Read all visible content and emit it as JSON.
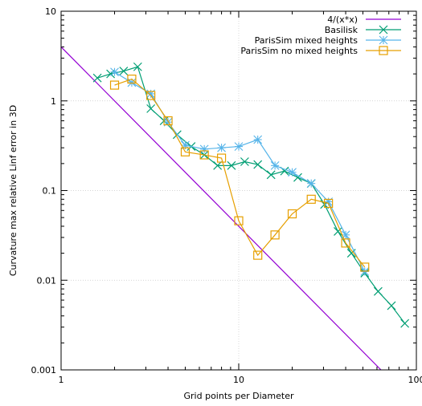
{
  "chart_data": {
    "type": "line",
    "xlabel": "Grid points per Diameter",
    "ylabel": "Curvature max relative Linf error in 3D",
    "xscale": "log",
    "yscale": "log",
    "xlim": [
      1,
      100
    ],
    "ylim": [
      0.001,
      10
    ],
    "grid": true,
    "legend_position": "top-right",
    "x_ticks": [
      {
        "value": 1,
        "label": "1"
      },
      {
        "value": 10,
        "label": "10"
      },
      {
        "value": 100,
        "label": "100"
      }
    ],
    "y_ticks": [
      {
        "value": 0.001,
        "label": "0.001"
      },
      {
        "value": 0.01,
        "label": "0.01"
      },
      {
        "value": 0.1,
        "label": "0.1"
      },
      {
        "value": 1,
        "label": "1"
      },
      {
        "value": 10,
        "label": "10"
      }
    ],
    "series": [
      {
        "name": "4/(x*x)",
        "kind": "function",
        "color": "#9400d3",
        "marker": "none",
        "x": [
          1,
          63.2
        ],
        "y": [
          4,
          0.001
        ]
      },
      {
        "name": "Basilisk",
        "color": "#009e73",
        "marker": "x",
        "x": [
          1.6,
          1.9,
          2.25,
          2.7,
          3.2,
          3.8,
          4.5,
          5.4,
          6.4,
          7.6,
          9.1,
          10.8,
          12.8,
          15.2,
          18.1,
          21.5,
          25.6,
          30.4,
          36.2,
          43.1,
          51.2,
          60.9,
          72.4,
          86.1
        ],
        "y": [
          1.8,
          2.0,
          2.15,
          2.4,
          0.82,
          0.6,
          0.42,
          0.31,
          0.25,
          0.19,
          0.19,
          0.21,
          0.195,
          0.15,
          0.165,
          0.14,
          0.12,
          0.07,
          0.035,
          0.02,
          0.012,
          0.0075,
          0.0052,
          0.0033
        ]
      },
      {
        "name": "ParisSim mixed heights",
        "color": "#56b4e9",
        "marker": "asterisk",
        "x": [
          2,
          2.5,
          3.2,
          4,
          5,
          6.4,
          8,
          10,
          12.8,
          16,
          20,
          25.6,
          32,
          40,
          51.2
        ],
        "y": [
          2.1,
          1.6,
          1.2,
          0.58,
          0.32,
          0.29,
          0.3,
          0.31,
          0.37,
          0.19,
          0.16,
          0.12,
          0.075,
          0.032,
          0.0125
        ]
      },
      {
        "name": "ParisSim no mixed heights",
        "color": "#e69f00",
        "marker": "square",
        "x": [
          2,
          2.5,
          3.2,
          4,
          5,
          6.4,
          8,
          10,
          12.8,
          16,
          20,
          25.6,
          32,
          40,
          51.2
        ],
        "y": [
          1.5,
          1.75,
          1.15,
          0.6,
          0.27,
          0.25,
          0.23,
          0.046,
          0.019,
          0.032,
          0.055,
          0.08,
          0.072,
          0.026,
          0.014
        ]
      }
    ]
  }
}
